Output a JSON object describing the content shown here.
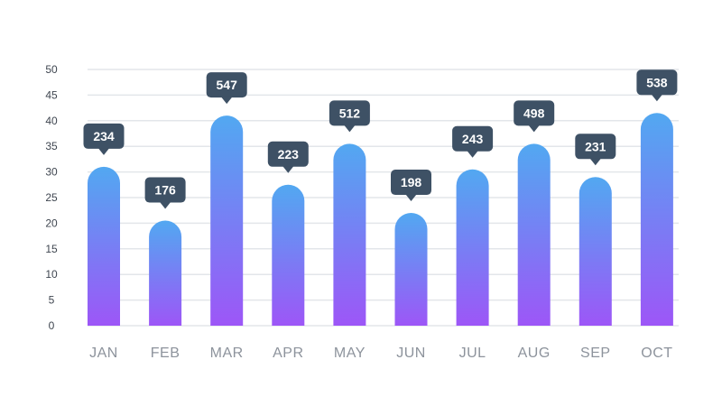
{
  "chart_data": {
    "type": "bar",
    "categories": [
      "JAN",
      "FEB",
      "MAR",
      "APR",
      "MAY",
      "JUN",
      "JUL",
      "AUG",
      "SEP",
      "OCT"
    ],
    "values": [
      31,
      20.5,
      41,
      27.5,
      35.5,
      22,
      30.5,
      35.5,
      29,
      41.5
    ],
    "data_labels": [
      "234",
      "176",
      "547",
      "223",
      "512",
      "198",
      "243",
      "498",
      "231",
      "538"
    ],
    "yticks": [
      0,
      5,
      10,
      15,
      20,
      25,
      30,
      35,
      40,
      45,
      50
    ],
    "ylim": [
      0,
      50
    ],
    "grid": true,
    "title": "",
    "xlabel": "",
    "ylabel": "",
    "colors": {
      "bar_top": "#52a8f1",
      "bar_bottom": "#9d56f7",
      "bubble": "#3e5165",
      "grid": "#e3e6ea"
    }
  }
}
